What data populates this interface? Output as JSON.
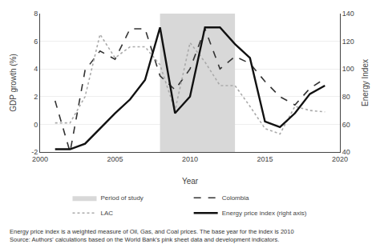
{
  "chart_data": {
    "type": "line",
    "x_label": "Year",
    "y_label": "GDP growth (%)",
    "y2_label": "Energy Index",
    "x": [
      2001,
      2002,
      2003,
      2004,
      2005,
      2006,
      2007,
      2008,
      2009,
      2010,
      2011,
      2012,
      2013,
      2014,
      2015,
      2016,
      2017,
      2018,
      2019
    ],
    "series": [
      {
        "name": "Colombia",
        "color": "#333333",
        "line_style": "dashed",
        "values": [
          1.7,
          -2.0,
          3.9,
          5.3,
          4.7,
          6.9,
          6.9,
          3.5,
          2.5,
          4.0,
          6.9,
          4.0,
          4.9,
          4.4,
          3.1,
          2.0,
          1.4,
          2.6,
          3.3
        ]
      },
      {
        "name": "LAC",
        "color": "#aaaaaa",
        "line_style": "dotted",
        "values": [
          0.1,
          0.1,
          2.0,
          6.5,
          4.8,
          5.6,
          5.6,
          4.3,
          1.0,
          5.9,
          4.5,
          2.8,
          2.8,
          1.3,
          -0.3,
          -0.7,
          1.3,
          1.0,
          0.9
        ]
      },
      {
        "name": "Energy price index (right axis)",
        "color": "#111111",
        "line_style": "solid",
        "axis": "y2",
        "values": [
          42,
          42,
          46,
          57,
          68,
          78,
          92,
          130,
          68,
          80,
          130,
          130,
          118,
          108,
          62,
          58,
          68,
          82,
          88
        ]
      }
    ],
    "spans": [
      {
        "name": "Period of study",
        "start": 2008,
        "end": 2013,
        "color": "#d8d8d8"
      }
    ],
    "xlim": [
      2000,
      2020
    ],
    "xticks": [
      2000,
      2005,
      2010,
      2015,
      2020
    ],
    "ylim": [
      -2,
      8
    ],
    "yticks": [
      -2,
      0,
      2,
      4,
      6,
      8
    ],
    "y2lim": [
      40,
      140
    ],
    "y2ticks": [
      40,
      60,
      80,
      100,
      120,
      140
    ],
    "grid": "y",
    "legend": "bottom",
    "annotations": [
      "Energy price index is a weighted measure of Oil, Gas, and Coal prices. The base year for the index is 2010",
      "Source: Authors' calculations based on the World Bank's pink sheet data and development indicators."
    ]
  }
}
